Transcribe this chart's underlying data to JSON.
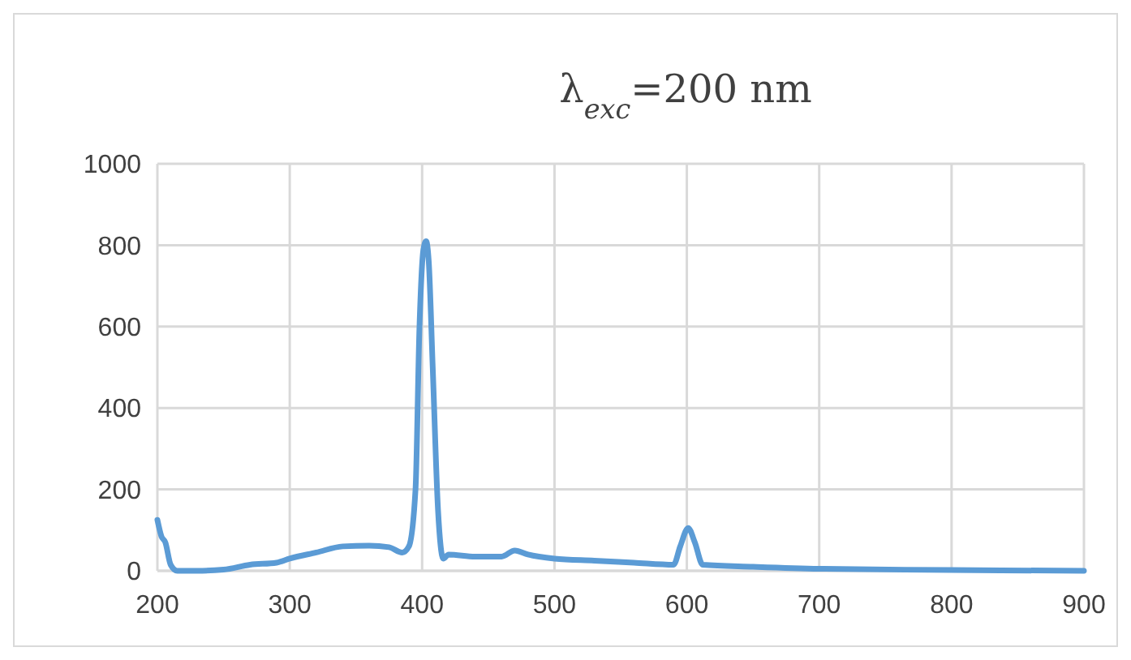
{
  "chart_data": {
    "type": "line",
    "title": "λ$_{exc}$=200 nm",
    "color": "#5b9bd5",
    "x": [
      200,
      203,
      206,
      210,
      215,
      230,
      250,
      270,
      290,
      300,
      320,
      340,
      360,
      375,
      385,
      390,
      395,
      398,
      401,
      403,
      405,
      408,
      412,
      416,
      420,
      440,
      460,
      470,
      480,
      500,
      530,
      560,
      590,
      595,
      601,
      606,
      612,
      650,
      700,
      800,
      900
    ],
    "values": [
      125,
      85,
      70,
      15,
      0,
      0,
      3,
      15,
      20,
      30,
      45,
      60,
      62,
      58,
      45,
      60,
      200,
      600,
      790,
      810,
      760,
      500,
      150,
      30,
      40,
      35,
      35,
      50,
      40,
      30,
      25,
      20,
      15,
      60,
      105,
      70,
      15,
      10,
      5,
      2,
      0
    ],
    "xlim": [
      200,
      900
    ],
    "xticks": [
      200,
      300,
      400,
      500,
      600,
      700,
      800,
      900
    ],
    "ylim": [
      0,
      1000
    ],
    "yticks": [
      0,
      200,
      400,
      600,
      800,
      1000
    ],
    "grid": true,
    "line_style": "solid",
    "marker": "none"
  }
}
